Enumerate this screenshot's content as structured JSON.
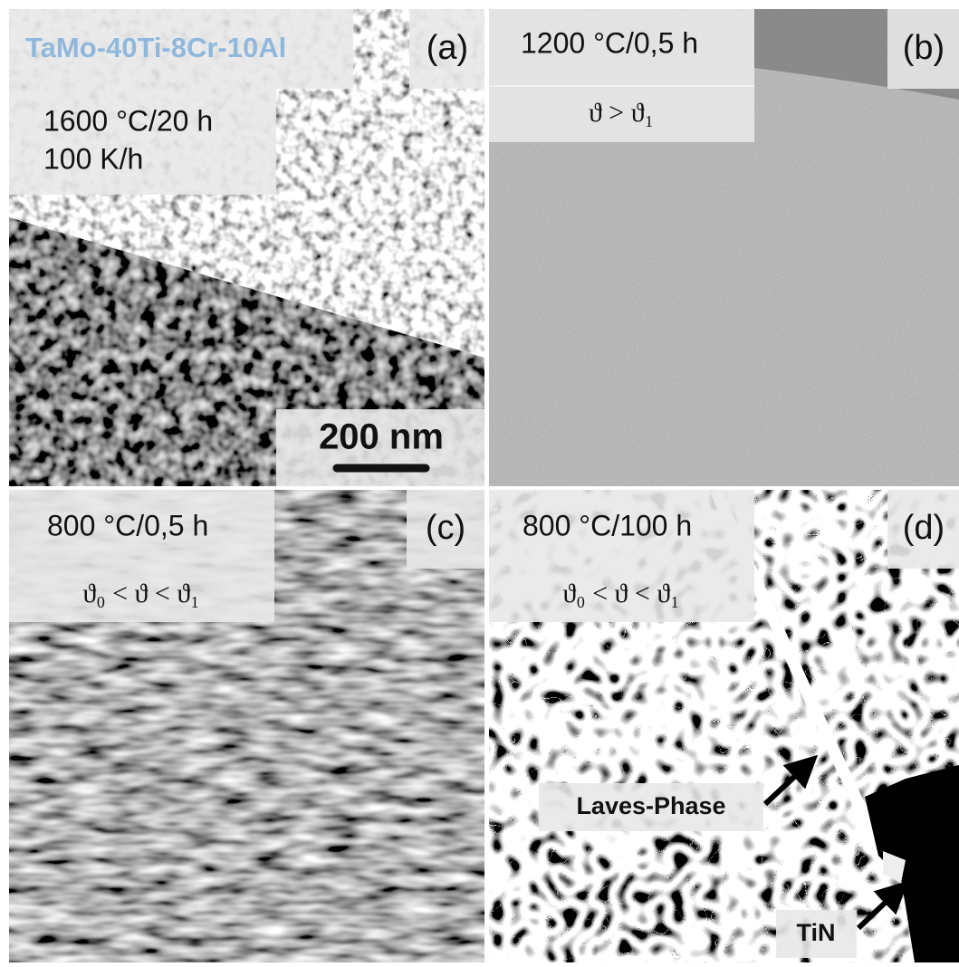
{
  "alloy": "TaMo-40Ti-8Cr-10Al",
  "scale_bar": "200 nm",
  "panels": [
    {
      "label": "(a)",
      "condition": [
        "1600 °C/20 h",
        "100 K/h"
      ]
    },
    {
      "label": "(b)",
      "condition": [
        "1200 °C/0,5 h"
      ],
      "formula": "ϑ > ϑ₁"
    },
    {
      "label": "(c)",
      "condition": [
        "800 °C/0,5 h"
      ],
      "formula": "ϑ₀ < ϑ < ϑ₁"
    },
    {
      "label": "(d)",
      "condition": [
        "800 °C/100 h"
      ],
      "formula": "ϑ₀ < ϑ < ϑ₁"
    }
  ],
  "annotations": [
    "Laves-Phase",
    "TiN"
  ]
}
